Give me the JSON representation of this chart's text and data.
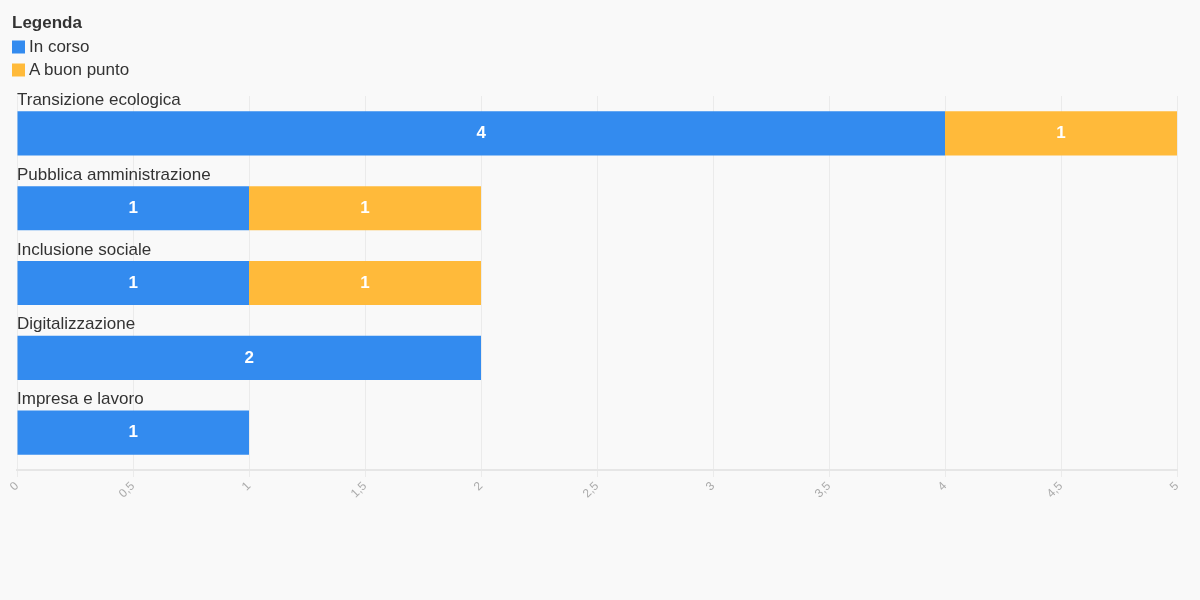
{
  "chart_data": {
    "type": "bar",
    "orientation": "horizontal",
    "stacked": true,
    "categories": [
      "Transizione ecologica",
      "Pubblica amministrazione",
      "Inclusione sociale",
      "Digitalizzazione",
      "Impresa e lavoro"
    ],
    "series": [
      {
        "name": "In corso",
        "color": "#338bef",
        "values": [
          4,
          1,
          1,
          2,
          1
        ]
      },
      {
        "name": "A buon punto",
        "color": "#ffba3a",
        "values": [
          1,
          1,
          1,
          null,
          null
        ]
      }
    ],
    "xlim": [
      0,
      5
    ],
    "xticks": [
      0,
      {
        "value": 0.5,
        "label": "0,5"
      },
      1,
      {
        "value": 1.5,
        "label": "1,5"
      },
      2,
      {
        "value": 2.5,
        "label": "2,5"
      },
      3,
      {
        "value": 3.5,
        "label": "3,5"
      },
      4,
      {
        "value": 4.5,
        "label": "4,5"
      },
      5
    ],
    "grid": "x",
    "legend": "top left",
    "legend_title": "Legenda",
    "data_labels": true
  }
}
